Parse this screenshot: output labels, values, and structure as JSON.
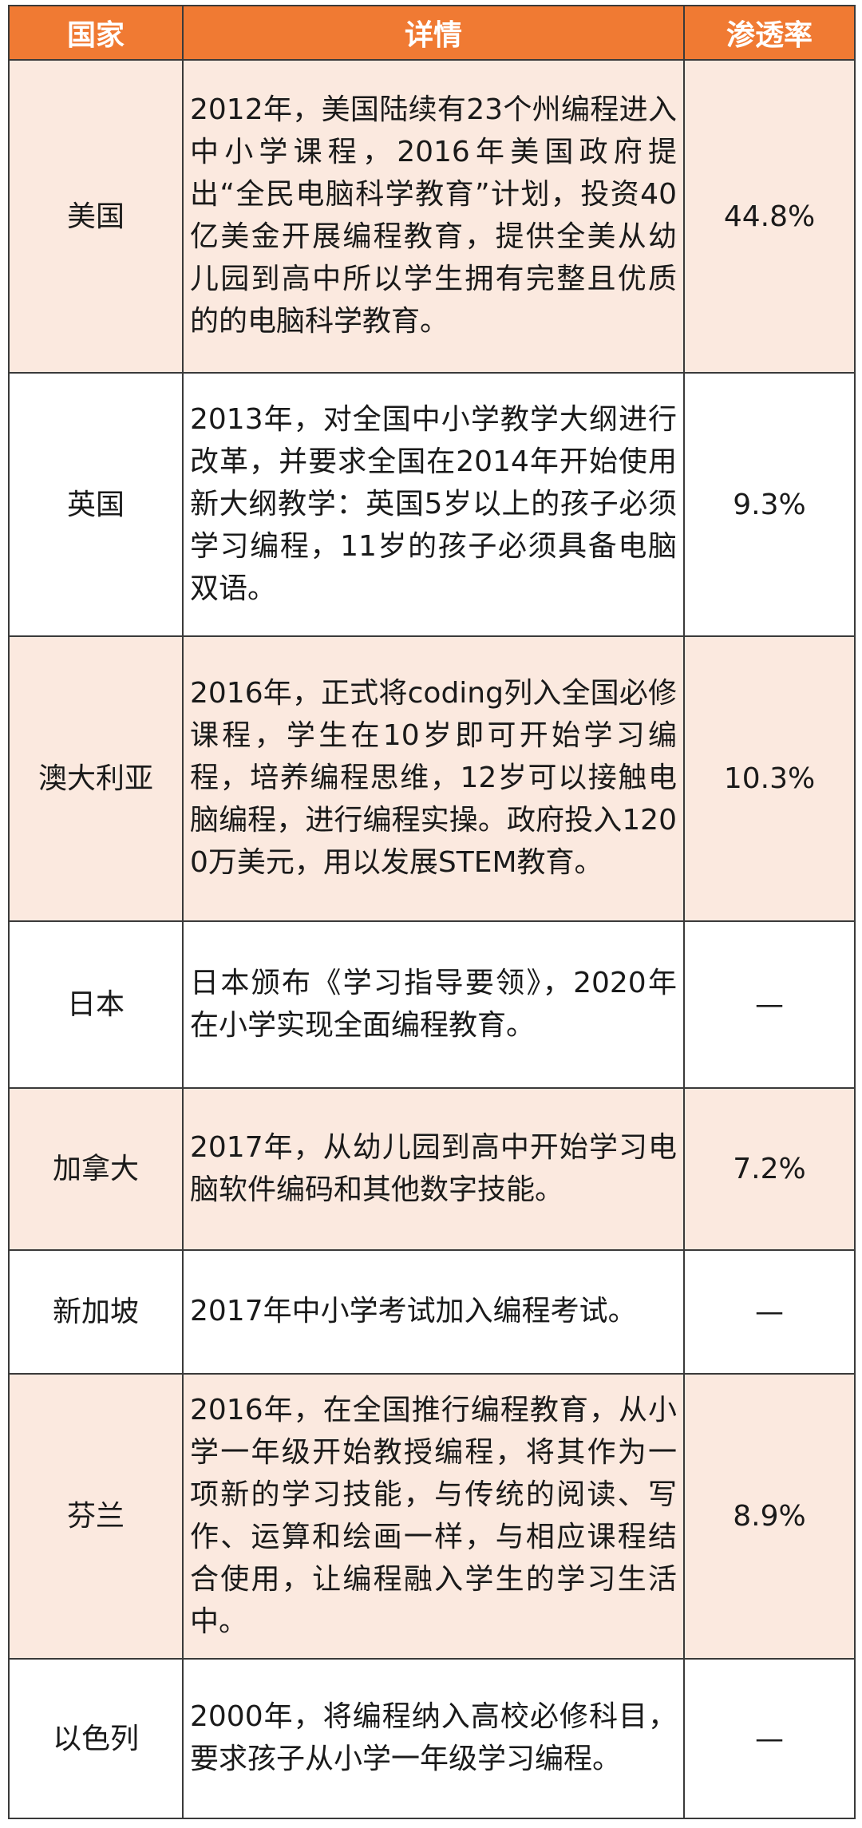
{
  "header": {
    "country": "国家",
    "detail": "详情",
    "rate": "渗透率"
  },
  "rows": [
    {
      "country": "美国",
      "detail": "2012年，美国陆续有23个州编程进入中小学课程，2016年美国政府提出“全民电脑科学教育”计划，投资40亿美金开展编程教育，提供全美从幼儿园到高中所以学生拥有完整且优质的的电脑科学教育。",
      "rate": "44.8%"
    },
    {
      "country": "英国",
      "detail": "2013年，对全国中小学教学大纲进行改革，并要求全国在2014年开始使用新大纲教学：英国5岁以上的孩子必须学习编程，11岁的孩子必须具备电脑双语。",
      "rate": "9.3%"
    },
    {
      "country": "澳大利亚",
      "detail": "2016年，正式将coding列入全国必修课程，学生在10岁即可开始学习编程，培养编程思维，12岁可以接触电脑编程，进行编程实操。政府投入1200万美元，用以发展STEM教育。",
      "rate": "10.3%"
    },
    {
      "country": "日本",
      "detail": "日本颁布《学习指导要领》，2020年在小学实现全面编程教育。",
      "rate": "—"
    },
    {
      "country": "加拿大",
      "detail": "2017年，从幼儿园到高中开始学习电脑软件编码和其他数字技能。",
      "rate": "7.2%"
    },
    {
      "country": "新加坡",
      "detail": "2017年中小学考试加入编程考试。",
      "rate": "—"
    },
    {
      "country": "芬兰",
      "detail": "2016年，在全国推行编程教育，从小学一年级开始教授编程，将其作为一项新的学习技能，与传统的阅读、写作、运算和绘画一样，与相应课程结合使用，让编程融入学生的学习生活中。",
      "rate": "8.9%"
    },
    {
      "country": "以色列",
      "detail": "2000年，将编程纳入高校必修科目，要求孩子从小学一年级学习编程。",
      "rate": "—"
    }
  ]
}
